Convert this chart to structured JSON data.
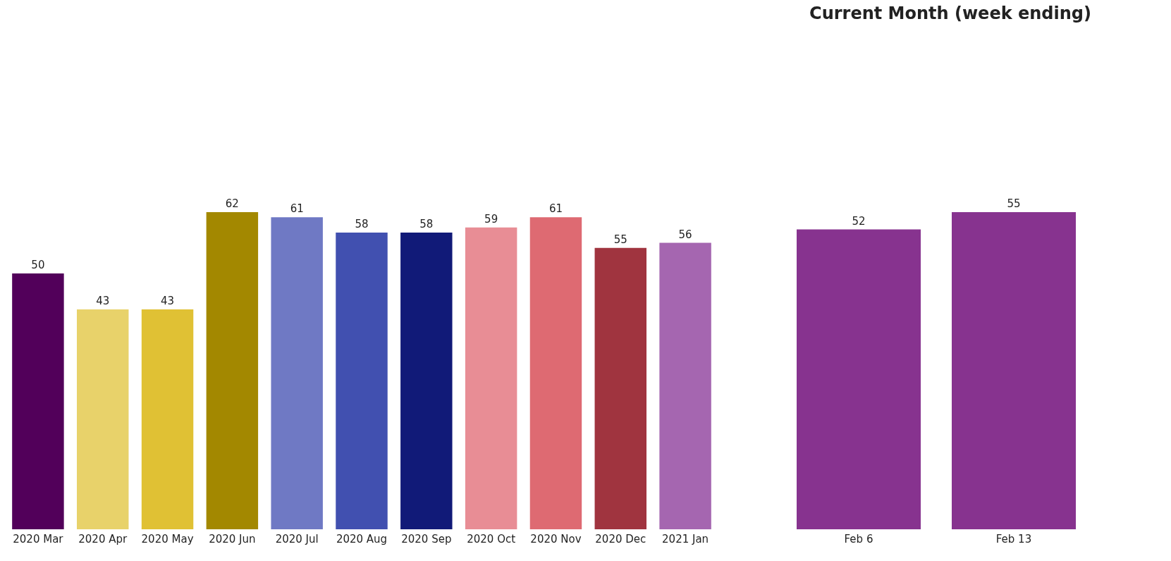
{
  "chart_data": [
    {
      "type": "bar",
      "categories": [
        "2020 Mar",
        "2020 Apr",
        "2020 May",
        "2020 Jun",
        "2020 Jul",
        "2020 Aug",
        "2020 Sep",
        "2020 Oct",
        "2020 Nov",
        "2020 Dec",
        "2021 Jan"
      ],
      "values": [
        50,
        43,
        43,
        62,
        61,
        58,
        58,
        59,
        61,
        55,
        56
      ],
      "colors": [
        "#52005a",
        "#e8d26a",
        "#e0c134",
        "#a38800",
        "#6f79c4",
        "#4150b0",
        "#111a78",
        "#e88d95",
        "#de6a72",
        "#a0343f",
        "#a566b0"
      ],
      "data_labels": true,
      "tick_labels": "x",
      "grid": false,
      "legend": false
    },
    {
      "type": "bar",
      "title": "Current Month (week ending)",
      "categories": [
        "Feb 6",
        "Feb 13"
      ],
      "values": [
        52,
        55
      ],
      "colors": [
        "#87338f",
        "#87338f"
      ],
      "data_labels": true,
      "tick_labels": "x",
      "grid": false,
      "legend": false
    }
  ]
}
